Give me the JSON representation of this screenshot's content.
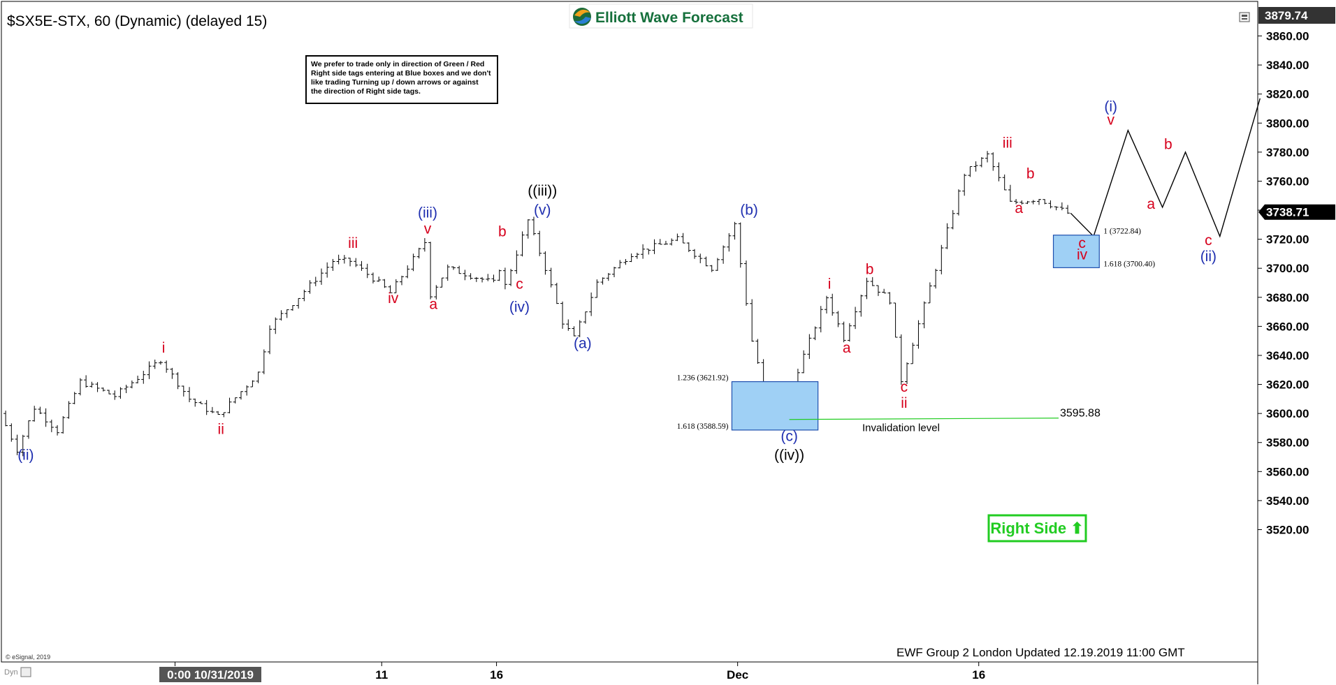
{
  "header": {
    "symbol_title": "$SX5E-STX, 60 (Dynamic) (delayed 15)",
    "brand": "Elliott Wave Forecast"
  },
  "note_lines": [
    "We prefer to trade only in direction of Green / Red",
    "Right side tags entering at Blue boxes and we don't",
    "like trading Turning up / down arrows or against",
    "the direction of Right side tags."
  ],
  "footer": {
    "updated": "EWF Group 2 London Updated 12.19.2019 11:00 GMT",
    "copyright": "© eSignal, 2019",
    "dyn": "Dyn"
  },
  "colors": {
    "red": "#d6001c",
    "blue": "#1f2fb0",
    "black": "#000000",
    "green": "#22cc22",
    "box_fill": "#9fd0f5",
    "box_stroke": "#1e4fae"
  },
  "chart_data": {
    "type": "candlestick",
    "title": "$SX5E-STX, 60 (Dynamic) (delayed 15)",
    "ylim": [
      3510,
      3880
    ],
    "y_ticks": [
      3520,
      3540,
      3560,
      3580,
      3600,
      3620,
      3640,
      3660,
      3680,
      3700,
      3720,
      3740,
      3760,
      3780,
      3800,
      3820,
      3840,
      3860
    ],
    "y_tick_labels": [
      "3520.00",
      "3540.00",
      "3560.00",
      "3580.00",
      "3600.00",
      "3620.00",
      "3640.00",
      "3660.00",
      "3680.00",
      "3700.00",
      "3720.00",
      "3740.00",
      "3760.00",
      "3780.00",
      "3800.00",
      "3820.00",
      "3840.00",
      "3860.00"
    ],
    "x_labels": [
      {
        "label": "0:00 10/31/2019",
        "bar": 30,
        "highlight": true
      },
      {
        "label": "11",
        "bar": 66
      },
      {
        "label": "16",
        "bar": 86
      },
      {
        "label": "Dec",
        "bar": 128
      },
      {
        "label": "16",
        "bar": 170
      }
    ],
    "top_price": "3879.74",
    "last_price": "3738.71",
    "last_price_value": 3738.71,
    "price_path": [
      [
        0,
        3600
      ],
      [
        3,
        3575
      ],
      [
        6,
        3604
      ],
      [
        10,
        3588
      ],
      [
        14,
        3622
      ],
      [
        20,
        3612
      ],
      [
        28,
        3637
      ],
      [
        33,
        3610
      ],
      [
        38,
        3598
      ],
      [
        45,
        3628
      ],
      [
        47,
        3660
      ],
      [
        52,
        3680
      ],
      [
        58,
        3705
      ],
      [
        61,
        3705
      ],
      [
        66,
        3690
      ],
      [
        68,
        3683
      ],
      [
        74,
        3718
      ],
      [
        75,
        3682
      ],
      [
        78,
        3700
      ],
      [
        86,
        3690
      ],
      [
        87,
        3700
      ],
      [
        88,
        3688
      ],
      [
        92,
        3733
      ],
      [
        95,
        3700
      ],
      [
        98,
        3663
      ],
      [
        100,
        3652
      ],
      [
        104,
        3690
      ],
      [
        110,
        3710
      ],
      [
        118,
        3720
      ],
      [
        124,
        3700
      ],
      [
        128,
        3730
      ],
      [
        131,
        3650
      ],
      [
        133,
        3620
      ],
      [
        136,
        3596
      ],
      [
        139,
        3630
      ],
      [
        144,
        3680
      ],
      [
        147,
        3652
      ],
      [
        151,
        3692
      ],
      [
        155,
        3678
      ],
      [
        157,
        3623
      ],
      [
        163,
        3700
      ],
      [
        168,
        3765
      ],
      [
        172,
        3778
      ],
      [
        176,
        3745
      ],
      [
        181,
        3748
      ],
      [
        186,
        3738
      ]
    ],
    "projection": [
      [
        186,
        3738
      ],
      [
        190,
        3722
      ],
      [
        196,
        3795
      ],
      [
        202,
        3742
      ],
      [
        206,
        3780
      ],
      [
        212,
        3722
      ],
      [
        219,
        3817
      ]
    ],
    "wave_labels": [
      {
        "text": "(ii)",
        "bar": 4,
        "price": 3568,
        "color": "blue"
      },
      {
        "text": "i",
        "bar": 28,
        "price": 3642,
        "color": "red"
      },
      {
        "text": "ii",
        "bar": 38,
        "price": 3586,
        "color": "red"
      },
      {
        "text": "iii",
        "bar": 61,
        "price": 3714,
        "color": "red"
      },
      {
        "text": "iv",
        "bar": 68,
        "price": 3676,
        "color": "red"
      },
      {
        "text": "(iii)",
        "bar": 74,
        "price": 3735,
        "color": "blue"
      },
      {
        "text": "v",
        "bar": 74,
        "price": 3724,
        "color": "red"
      },
      {
        "text": "a",
        "bar": 75,
        "price": 3672,
        "color": "red"
      },
      {
        "text": "b",
        "bar": 87,
        "price": 3722,
        "color": "red"
      },
      {
        "text": "c",
        "bar": 90,
        "price": 3686,
        "color": "red"
      },
      {
        "text": "(iv)",
        "bar": 90,
        "price": 3670,
        "color": "blue"
      },
      {
        "text": "((iii))",
        "bar": 94,
        "price": 3750,
        "color": "black"
      },
      {
        "text": "(v)",
        "bar": 94,
        "price": 3737,
        "color": "blue"
      },
      {
        "text": "(a)",
        "bar": 101,
        "price": 3645,
        "color": "blue"
      },
      {
        "text": "(b)",
        "bar": 130,
        "price": 3737,
        "color": "blue"
      },
      {
        "text": "i",
        "bar": 144,
        "price": 3686,
        "color": "red"
      },
      {
        "text": "a",
        "bar": 147,
        "price": 3642,
        "color": "red"
      },
      {
        "text": "b",
        "bar": 151,
        "price": 3696,
        "color": "red"
      },
      {
        "text": "c",
        "bar": 157,
        "price": 3615,
        "color": "red"
      },
      {
        "text": "ii",
        "bar": 157,
        "price": 3604,
        "color": "red"
      },
      {
        "text": "(c)",
        "bar": 137,
        "price": 3581,
        "color": "blue"
      },
      {
        "text": "((iv))",
        "bar": 137,
        "price": 3568,
        "color": "black"
      },
      {
        "text": "iii",
        "bar": 175,
        "price": 3783,
        "color": "red"
      },
      {
        "text": "b",
        "bar": 179,
        "price": 3762,
        "color": "red"
      },
      {
        "text": "a",
        "bar": 177,
        "price": 3738,
        "color": "red"
      },
      {
        "text": "c",
        "bar": 188,
        "price": 3714,
        "color": "red"
      },
      {
        "text": "iv",
        "bar": 188,
        "price": 3706,
        "color": "red"
      },
      {
        "text": "(i)",
        "bar": 193,
        "price": 3808,
        "color": "blue"
      },
      {
        "text": "v",
        "bar": 193,
        "price": 3799,
        "color": "red"
      },
      {
        "text": "b",
        "bar": 203,
        "price": 3782,
        "color": "red"
      },
      {
        "text": "a",
        "bar": 200,
        "price": 3741,
        "color": "red"
      },
      {
        "text": "c",
        "bar": 210,
        "price": 3716,
        "color": "red"
      },
      {
        "text": "(ii)",
        "bar": 210,
        "price": 3705,
        "color": "blue"
      }
    ],
    "blue_boxes": [
      {
        "bar_start": 127,
        "bar_end": 142,
        "price_top": 3621.92,
        "price_bottom": 3588.59,
        "label_top": "1.236 (3621.92)",
        "label_bottom": "1.618 (3588.59)",
        "label_side": "left"
      },
      {
        "bar_start": 183,
        "bar_end": 191,
        "price_top": 3722.84,
        "price_bottom": 3700.4,
        "label_top": "1 (3722.84)",
        "label_bottom": "1.618 (3700.40)",
        "label_side": "right"
      }
    ],
    "invalidation": {
      "bar_start": 137,
      "bar_end": 193,
      "price": 3595.88,
      "label": "Invalidation level",
      "value_label": "3595.88"
    },
    "right_side_tag": {
      "text": "Right Side",
      "arrow": "⬆"
    }
  }
}
